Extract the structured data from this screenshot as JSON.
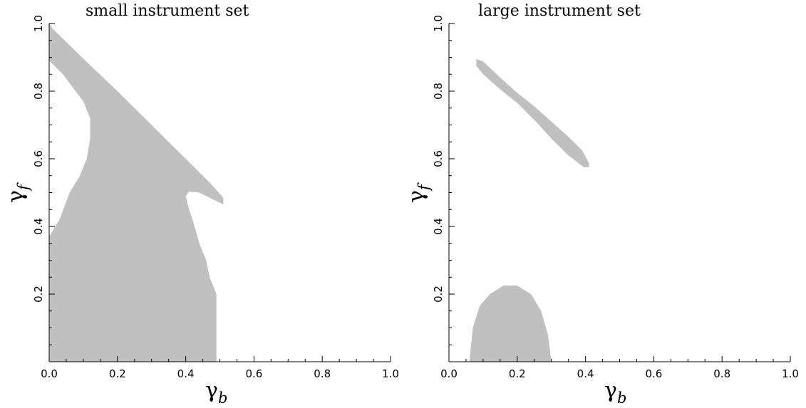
{
  "chart_data": [
    {
      "type": "area",
      "title": "small instrument set",
      "xlabel": {
        "symbol": "γ",
        "subscript": "b"
      },
      "ylabel": {
        "symbol": "γ",
        "subscript": "f"
      },
      "xlim": [
        0,
        1
      ],
      "ylim": [
        0,
        1
      ],
      "xticks": [
        "0.0",
        "0.2",
        "0.4",
        "0.6",
        "0.8",
        "1.0"
      ],
      "yticks": [
        "0.2",
        "0.4",
        "0.6",
        "0.8",
        "1.0"
      ],
      "grid": false,
      "fill_color": "#c0c0c0",
      "regions": [
        {
          "name": "",
          "outline": [
            [
              0.0,
              1.0
            ],
            [
              0.01,
              0.985
            ],
            [
              0.1,
              0.896
            ],
            [
              0.2,
              0.8
            ],
            [
              0.3,
              0.7
            ],
            [
              0.4,
              0.6
            ],
            [
              0.47,
              0.53
            ],
            [
              0.51,
              0.485
            ],
            [
              0.51,
              0.465
            ],
            [
              0.48,
              0.48
            ],
            [
              0.44,
              0.5
            ],
            [
              0.41,
              0.503
            ],
            [
              0.4,
              0.49
            ],
            [
              0.41,
              0.45
            ],
            [
              0.42,
              0.42
            ],
            [
              0.44,
              0.35
            ],
            [
              0.46,
              0.3
            ],
            [
              0.47,
              0.25
            ],
            [
              0.49,
              0.2
            ],
            [
              0.49,
              0.0
            ],
            [
              0.0,
              0.0
            ],
            [
              0.0,
              0.37
            ],
            [
              0.03,
              0.42
            ],
            [
              0.06,
              0.5
            ],
            [
              0.09,
              0.55
            ],
            [
              0.11,
              0.6
            ],
            [
              0.12,
              0.66
            ],
            [
              0.12,
              0.72
            ],
            [
              0.1,
              0.77
            ],
            [
              0.07,
              0.81
            ],
            [
              0.04,
              0.85
            ],
            [
              0.0,
              0.89
            ]
          ]
        }
      ]
    },
    {
      "type": "area",
      "title": "large instrument set",
      "xlabel": {
        "symbol": "γ",
        "subscript": "b"
      },
      "ylabel": {
        "symbol": "γ",
        "subscript": "f"
      },
      "xlim": [
        0,
        1
      ],
      "ylim": [
        0,
        1
      ],
      "xticks": [
        "0.0",
        "0.2",
        "0.4",
        "0.6",
        "0.8",
        "1.0"
      ],
      "yticks": [
        "0.2",
        "0.4",
        "0.6",
        "0.8",
        "1.0"
      ],
      "grid": false,
      "fill_color": "#c0c0c0",
      "regions": [
        {
          "name": "",
          "outline": [
            [
              0.08,
              0.895
            ],
            [
              0.1,
              0.888
            ],
            [
              0.15,
              0.84
            ],
            [
              0.2,
              0.795
            ],
            [
              0.25,
              0.755
            ],
            [
              0.3,
              0.71
            ],
            [
              0.35,
              0.665
            ],
            [
              0.39,
              0.625
            ],
            [
              0.41,
              0.588
            ],
            [
              0.41,
              0.575
            ],
            [
              0.395,
              0.575
            ],
            [
              0.35,
              0.61
            ],
            [
              0.3,
              0.66
            ],
            [
              0.25,
              0.715
            ],
            [
              0.2,
              0.765
            ],
            [
              0.15,
              0.805
            ],
            [
              0.1,
              0.85
            ],
            [
              0.08,
              0.875
            ]
          ]
        },
        {
          "name": "",
          "outline": [
            [
              0.06,
              0.0
            ],
            [
              0.07,
              0.1
            ],
            [
              0.09,
              0.165
            ],
            [
              0.12,
              0.2
            ],
            [
              0.16,
              0.225
            ],
            [
              0.2,
              0.225
            ],
            [
              0.24,
              0.2
            ],
            [
              0.27,
              0.15
            ],
            [
              0.29,
              0.08
            ],
            [
              0.3,
              0.0
            ]
          ]
        }
      ]
    }
  ]
}
